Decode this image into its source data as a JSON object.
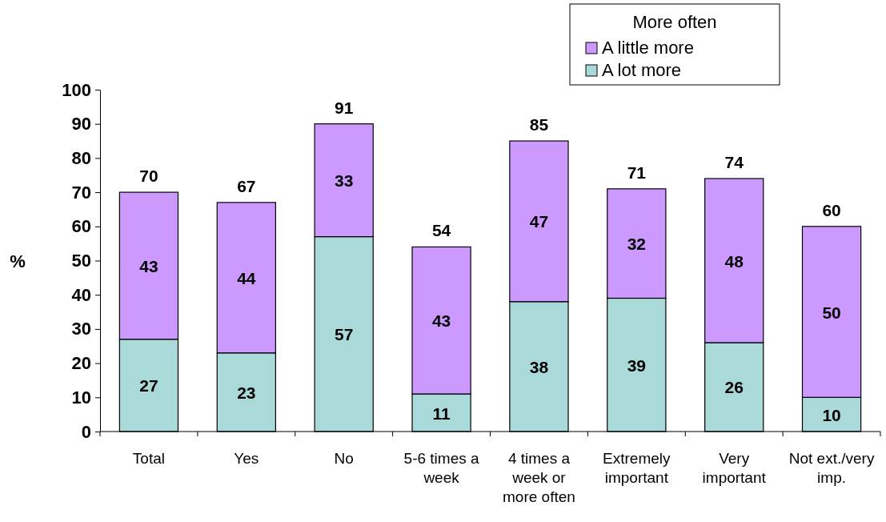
{
  "chart_data": {
    "type": "bar",
    "stacked": true,
    "ylabel": "%",
    "legend_title": "More often",
    "legend": "top right",
    "categories": [
      "Total",
      "Yes",
      "No",
      "5-6 times a week",
      "4 times a week or more often",
      "Extremely important",
      "Very important",
      "Not ext./very imp."
    ],
    "series": [
      {
        "name": "A lot more",
        "color": "#a9d9d9",
        "values": [
          27,
          23,
          57,
          11,
          38,
          39,
          26,
          10
        ]
      },
      {
        "name": "A little more",
        "color": "#cc99ff",
        "values": [
          43,
          44,
          33,
          43,
          47,
          32,
          48,
          50
        ]
      }
    ],
    "data_labels": true,
    "totals": [
      "70",
      "67",
      "91",
      "54",
      "85",
      "71",
      "74",
      "60"
    ],
    "ylim": [
      0,
      100
    ],
    "yticks": [
      0,
      10,
      20,
      30,
      40,
      50,
      60,
      70,
      80,
      90,
      100
    ],
    "grid": false
  }
}
